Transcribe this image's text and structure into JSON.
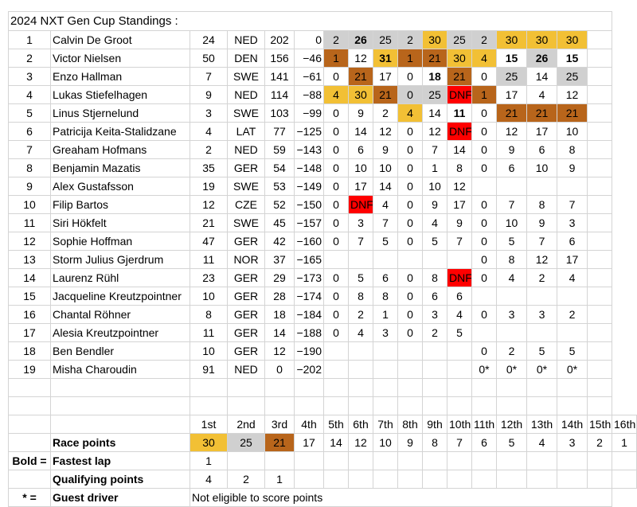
{
  "title": "2024 NXT Gen Cup Standings :",
  "rows": [
    {
      "pos": "1",
      "name": "Calvin De Groot",
      "num": "24",
      "nat": "NED",
      "pts": "202",
      "gap": "0",
      "races": [
        {
          "v": "2",
          "c": "silver"
        },
        {
          "v": "26",
          "c": "silver",
          "b": true
        },
        {
          "v": "25",
          "c": "silver"
        },
        {
          "v": "2",
          "c": "silver"
        },
        {
          "v": "30",
          "c": "gold"
        },
        {
          "v": "25",
          "c": "silver"
        },
        {
          "v": "2",
          "c": "silver"
        },
        {
          "v": "30",
          "c": "gold"
        },
        {
          "v": "30",
          "c": "gold"
        },
        {
          "v": "30",
          "c": "gold"
        }
      ]
    },
    {
      "pos": "2",
      "name": "Victor Nielsen",
      "num": "50",
      "nat": "DEN",
      "pts": "156",
      "gap": "−46",
      "races": [
        {
          "v": "1",
          "c": "bronze"
        },
        {
          "v": "12"
        },
        {
          "v": "31",
          "c": "gold",
          "b": true
        },
        {
          "v": "1",
          "c": "bronze"
        },
        {
          "v": "21",
          "c": "bronze"
        },
        {
          "v": "30",
          "c": "gold"
        },
        {
          "v": "4",
          "c": "gold"
        },
        {
          "v": "15",
          "b": true
        },
        {
          "v": "26",
          "c": "silver",
          "b": true
        },
        {
          "v": "15",
          "b": true
        }
      ]
    },
    {
      "pos": "3",
      "name": "Enzo Hallman",
      "num": "7",
      "nat": "SWE",
      "pts": "141",
      "gap": "−61",
      "races": [
        {
          "v": "0"
        },
        {
          "v": "21",
          "c": "bronze"
        },
        {
          "v": "17"
        },
        {
          "v": "0"
        },
        {
          "v": "18",
          "b": true
        },
        {
          "v": "21",
          "c": "bronze"
        },
        {
          "v": "0"
        },
        {
          "v": "25",
          "c": "silver"
        },
        {
          "v": "14"
        },
        {
          "v": "25",
          "c": "silver"
        }
      ]
    },
    {
      "pos": "4",
      "name": "Lukas Stiefelhagen",
      "num": "9",
      "nat": "NED",
      "pts": "114",
      "gap": "−88",
      "races": [
        {
          "v": "4",
          "c": "gold"
        },
        {
          "v": "30",
          "c": "gold"
        },
        {
          "v": "21",
          "c": "bronze"
        },
        {
          "v": "0",
          "c": "silver"
        },
        {
          "v": "25",
          "c": "silver"
        },
        {
          "v": "DNF",
          "c": "dnf"
        },
        {
          "v": "1",
          "c": "bronze"
        },
        {
          "v": "17"
        },
        {
          "v": "4"
        },
        {
          "v": "12"
        }
      ]
    },
    {
      "pos": "5",
      "name": "Linus Stjernelund",
      "num": "3",
      "nat": "SWE",
      "pts": "103",
      "gap": "−99",
      "races": [
        {
          "v": "0"
        },
        {
          "v": "9"
        },
        {
          "v": "2"
        },
        {
          "v": "4",
          "c": "gold"
        },
        {
          "v": "14"
        },
        {
          "v": "11",
          "b": true
        },
        {
          "v": "0"
        },
        {
          "v": "21",
          "c": "bronze"
        },
        {
          "v": "21",
          "c": "bronze"
        },
        {
          "v": "21",
          "c": "bronze"
        }
      ]
    },
    {
      "pos": "6",
      "name": "Patricija Keita-Stalidzane",
      "num": "4",
      "nat": "LAT",
      "pts": "77",
      "gap": "−125",
      "races": [
        {
          "v": "0"
        },
        {
          "v": "14"
        },
        {
          "v": "12"
        },
        {
          "v": "0"
        },
        {
          "v": "12"
        },
        {
          "v": "DNF",
          "c": "dnf"
        },
        {
          "v": "0"
        },
        {
          "v": "12"
        },
        {
          "v": "17"
        },
        {
          "v": "10"
        }
      ]
    },
    {
      "pos": "7",
      "name": "Greaham Hofmans",
      "num": "2",
      "nat": "NED",
      "pts": "59",
      "gap": "−143",
      "races": [
        {
          "v": "0"
        },
        {
          "v": "6"
        },
        {
          "v": "9"
        },
        {
          "v": "0"
        },
        {
          "v": "7"
        },
        {
          "v": "14"
        },
        {
          "v": "0"
        },
        {
          "v": "9"
        },
        {
          "v": "6"
        },
        {
          "v": "8"
        }
      ]
    },
    {
      "pos": "8",
      "name": "Benjamin Mazatis",
      "num": "35",
      "nat": "GER",
      "pts": "54",
      "gap": "−148",
      "races": [
        {
          "v": "0"
        },
        {
          "v": "10"
        },
        {
          "v": "10"
        },
        {
          "v": "0"
        },
        {
          "v": "1"
        },
        {
          "v": "8"
        },
        {
          "v": "0"
        },
        {
          "v": "6"
        },
        {
          "v": "10"
        },
        {
          "v": "9"
        }
      ]
    },
    {
      "pos": "9",
      "name": "Alex Gustafsson",
      "num": "19",
      "nat": "SWE",
      "pts": "53",
      "gap": "−149",
      "races": [
        {
          "v": "0"
        },
        {
          "v": "17"
        },
        {
          "v": "14"
        },
        {
          "v": "0"
        },
        {
          "v": "10"
        },
        {
          "v": "12"
        },
        {
          "v": ""
        },
        {
          "v": ""
        },
        {
          "v": ""
        },
        {
          "v": ""
        }
      ]
    },
    {
      "pos": "10",
      "name": "Filip Bartos",
      "num": "12",
      "nat": "CZE",
      "pts": "52",
      "gap": "−150",
      "races": [
        {
          "v": "0"
        },
        {
          "v": "DNF",
          "c": "dnf"
        },
        {
          "v": "4"
        },
        {
          "v": "0"
        },
        {
          "v": "9"
        },
        {
          "v": "17"
        },
        {
          "v": "0"
        },
        {
          "v": "7"
        },
        {
          "v": "8"
        },
        {
          "v": "7"
        }
      ]
    },
    {
      "pos": "11",
      "name": "Siri Hökfelt",
      "num": "21",
      "nat": "SWE",
      "pts": "45",
      "gap": "−157",
      "races": [
        {
          "v": "0"
        },
        {
          "v": "3"
        },
        {
          "v": "7"
        },
        {
          "v": "0"
        },
        {
          "v": "4"
        },
        {
          "v": "9"
        },
        {
          "v": "0"
        },
        {
          "v": "10"
        },
        {
          "v": "9"
        },
        {
          "v": "3"
        }
      ]
    },
    {
      "pos": "12",
      "name": "Sophie Hoffman",
      "num": "47",
      "nat": "GER",
      "pts": "42",
      "gap": "−160",
      "races": [
        {
          "v": "0"
        },
        {
          "v": "7"
        },
        {
          "v": "5"
        },
        {
          "v": "0"
        },
        {
          "v": "5"
        },
        {
          "v": "7"
        },
        {
          "v": "0"
        },
        {
          "v": "5"
        },
        {
          "v": "7"
        },
        {
          "v": "6"
        }
      ]
    },
    {
      "pos": "13",
      "name": "Storm Julius Gjerdrum",
      "num": "11",
      "nat": "NOR",
      "pts": "37",
      "gap": "−165",
      "races": [
        {
          "v": ""
        },
        {
          "v": ""
        },
        {
          "v": ""
        },
        {
          "v": ""
        },
        {
          "v": ""
        },
        {
          "v": ""
        },
        {
          "v": "0"
        },
        {
          "v": "8"
        },
        {
          "v": "12"
        },
        {
          "v": "17"
        }
      ]
    },
    {
      "pos": "14",
      "name": "Laurenz Rühl",
      "num": "23",
      "nat": "GER",
      "pts": "29",
      "gap": "−173",
      "races": [
        {
          "v": "0"
        },
        {
          "v": "5"
        },
        {
          "v": "6"
        },
        {
          "v": "0"
        },
        {
          "v": "8"
        },
        {
          "v": "DNF",
          "c": "dnf"
        },
        {
          "v": "0"
        },
        {
          "v": "4"
        },
        {
          "v": "2"
        },
        {
          "v": "4"
        }
      ]
    },
    {
      "pos": "15",
      "name": "Jacqueline Kreutzpointner",
      "num": "10",
      "nat": "GER",
      "pts": "28",
      "gap": "−174",
      "races": [
        {
          "v": "0"
        },
        {
          "v": "8"
        },
        {
          "v": "8"
        },
        {
          "v": "0"
        },
        {
          "v": "6"
        },
        {
          "v": "6"
        },
        {
          "v": ""
        },
        {
          "v": ""
        },
        {
          "v": ""
        },
        {
          "v": ""
        }
      ]
    },
    {
      "pos": "16",
      "name": "Chantal Röhner",
      "num": "8",
      "nat": "GER",
      "pts": "18",
      "gap": "−184",
      "races": [
        {
          "v": "0"
        },
        {
          "v": "2"
        },
        {
          "v": "1"
        },
        {
          "v": "0"
        },
        {
          "v": "3"
        },
        {
          "v": "4"
        },
        {
          "v": "0"
        },
        {
          "v": "3"
        },
        {
          "v": "3"
        },
        {
          "v": "2"
        }
      ]
    },
    {
      "pos": "17",
      "name": "Alesia Kreutzpointner",
      "num": "11",
      "nat": "GER",
      "pts": "14",
      "gap": "−188",
      "races": [
        {
          "v": "0"
        },
        {
          "v": "4"
        },
        {
          "v": "3"
        },
        {
          "v": "0"
        },
        {
          "v": "2"
        },
        {
          "v": "5"
        },
        {
          "v": ""
        },
        {
          "v": ""
        },
        {
          "v": ""
        },
        {
          "v": ""
        }
      ]
    },
    {
      "pos": "18",
      "name": "Ben Bendler",
      "num": "10",
      "nat": "GER",
      "pts": "12",
      "gap": "−190",
      "races": [
        {
          "v": ""
        },
        {
          "v": ""
        },
        {
          "v": ""
        },
        {
          "v": ""
        },
        {
          "v": ""
        },
        {
          "v": ""
        },
        {
          "v": "0"
        },
        {
          "v": "2"
        },
        {
          "v": "5"
        },
        {
          "v": "5"
        }
      ]
    },
    {
      "pos": "19",
      "name": "Misha Charoudin",
      "num": "91",
      "nat": "NED",
      "pts": "0",
      "gap": "−202",
      "races": [
        {
          "v": ""
        },
        {
          "v": ""
        },
        {
          "v": ""
        },
        {
          "v": ""
        },
        {
          "v": ""
        },
        {
          "v": ""
        },
        {
          "v": "0*"
        },
        {
          "v": "0*"
        },
        {
          "v": "0*"
        },
        {
          "v": "0*"
        }
      ]
    }
  ],
  "places": [
    "1st",
    "2nd",
    "3rd",
    "4th",
    "5th",
    "6th",
    "7th",
    "8th",
    "9th",
    "10th",
    "11th",
    "12th",
    "13th",
    "14th",
    "15th",
    "16th"
  ],
  "race_points": {
    "label": "Race points",
    "values": [
      "30",
      "25",
      "21",
      "17",
      "14",
      "12",
      "10",
      "9",
      "8",
      "7",
      "6",
      "5",
      "4",
      "3",
      "2",
      "1"
    ],
    "colors": [
      "gold",
      "silver",
      "bronze",
      "",
      "",
      "",
      "",
      "",
      "",
      "",
      "",
      "",
      "",
      "",
      "",
      ""
    ]
  },
  "fastest_lap": {
    "key": "Bold =",
    "label": "Fastest lap",
    "values": [
      "1"
    ]
  },
  "qualifying": {
    "label": "Qualifying points",
    "values": [
      "4",
      "2",
      "1"
    ]
  },
  "guest": {
    "key": "* =",
    "label": "Guest driver",
    "note": "Not eligible to score points"
  },
  "colors": {
    "gold": "#f2c035",
    "silver": "#d0d0d0",
    "bronze": "#b8651b",
    "dnf": "#ff0000"
  }
}
